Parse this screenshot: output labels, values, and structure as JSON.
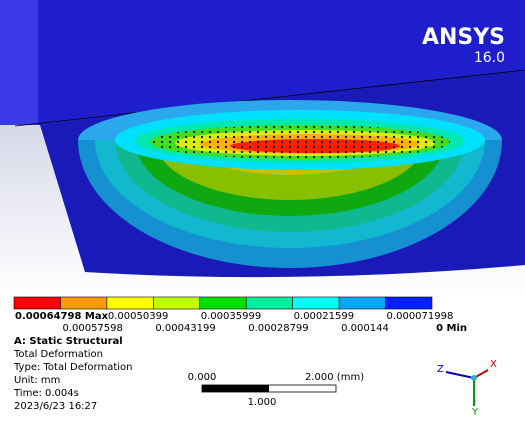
{
  "brand": {
    "name": "ANSYS",
    "version": "16.0"
  },
  "legend": {
    "colors": [
      "#ff0000",
      "#ff9a00",
      "#ffff00",
      "#bfff00",
      "#00e000",
      "#00f0a0",
      "#00ffff",
      "#00a8ff",
      "#0020ff"
    ],
    "top_labels": [
      "0.00064798 Max",
      "0.00050399",
      "0.00035999",
      "0.00021599",
      "0.000071998"
    ],
    "bottom_labels": [
      "0.00057598",
      "0.00043199",
      "0.00028799",
      "0.000144",
      "0 Min"
    ]
  },
  "info": {
    "analysis": "A: Static Structural",
    "result": "Total Deformation",
    "type": "Type: Total Deformation",
    "unit": "Unit: mm",
    "time": "Time: 0.004s",
    "date": "2023/6/23 16:27"
  },
  "scale_bar": {
    "start": "0.000",
    "end": "2.000 (mm)",
    "mid": "1.000"
  },
  "triad": {
    "x": "X",
    "y": "Y",
    "z": "Z"
  }
}
